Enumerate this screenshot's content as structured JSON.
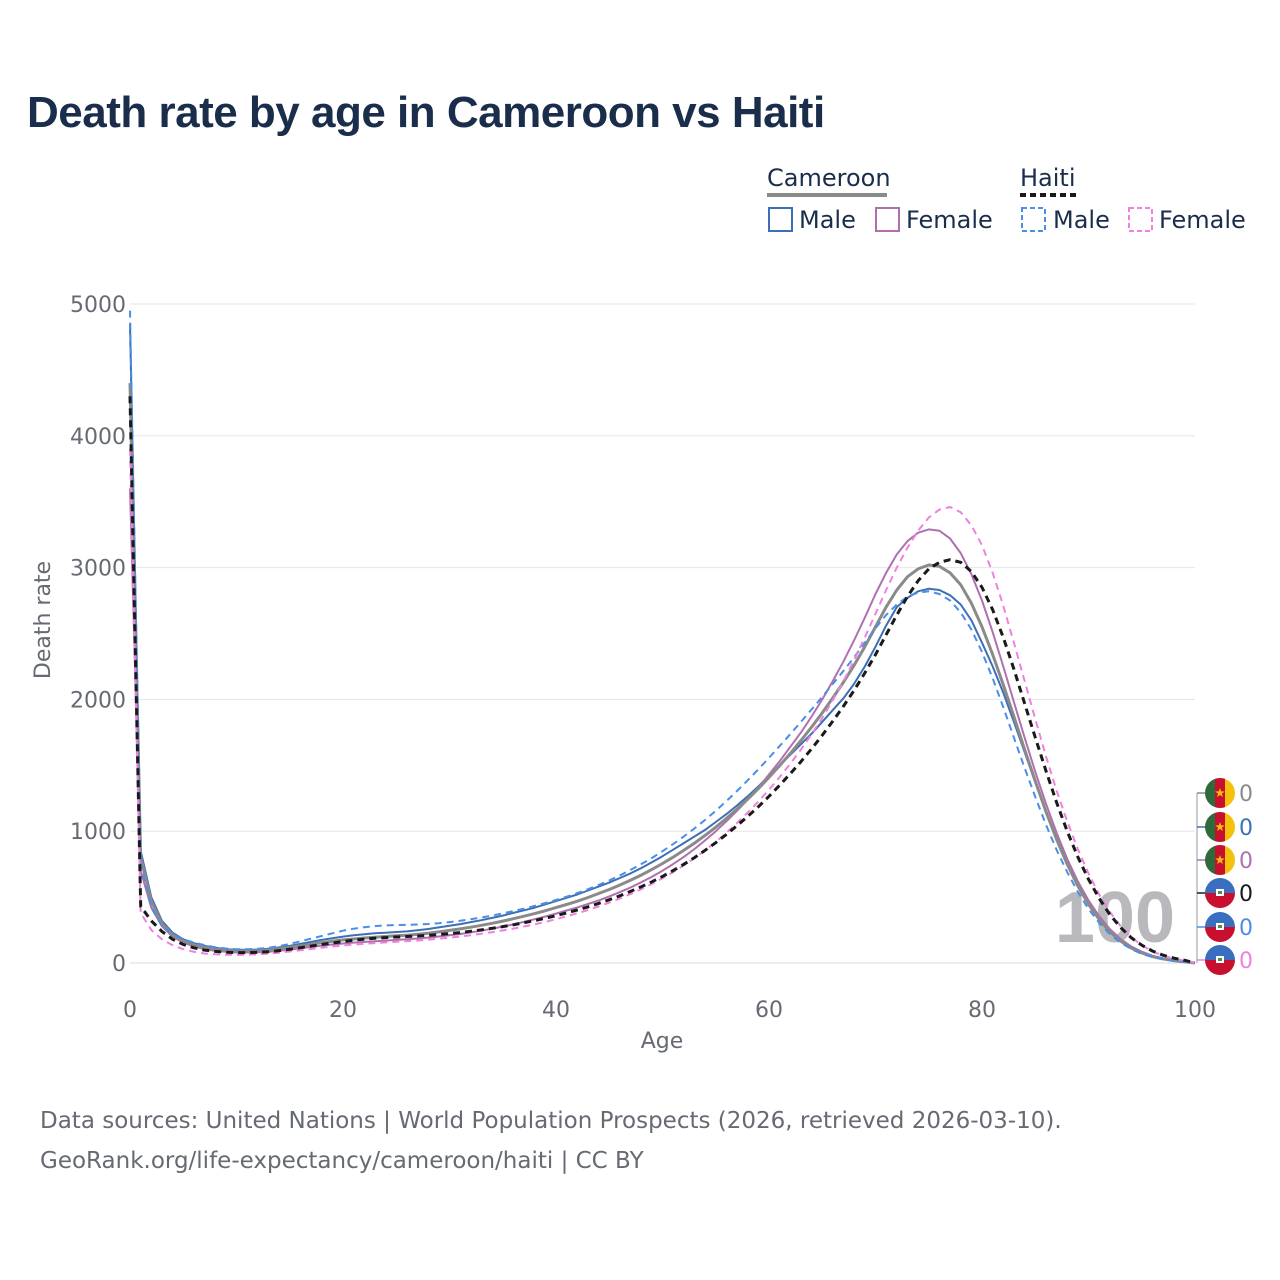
{
  "title": "Death rate by age in Cameroon vs Haiti",
  "legend": {
    "group_a": "Cameroon",
    "group_b": "Haiti",
    "male": "Male",
    "female": "Female"
  },
  "source_line1": "Data sources: United Nations | World Population Prospects (2026, retrieved 2026-03-10).",
  "source_line2": "GeoRank.org/life-expectancy/cameroon/haiti | CC BY",
  "chart_data": {
    "type": "line",
    "title": "Death rate by age in Cameroon vs Haiti",
    "xlabel": "Age",
    "ylabel": "Death rate",
    "xlim": [
      0,
      100
    ],
    "ylim": [
      0,
      5000
    ],
    "xticks": [
      0,
      20,
      40,
      60,
      80,
      100
    ],
    "yticks": [
      0,
      1000,
      2000,
      3000,
      4000,
      5000
    ],
    "animation_age_label": "100",
    "x": [
      0,
      1,
      2,
      3,
      4,
      5,
      6,
      7,
      8,
      9,
      10,
      11,
      12,
      13,
      14,
      15,
      16,
      17,
      18,
      19,
      20,
      21,
      22,
      23,
      24,
      25,
      26,
      27,
      28,
      29,
      30,
      31,
      32,
      33,
      34,
      35,
      36,
      37,
      38,
      39,
      40,
      41,
      42,
      43,
      44,
      45,
      46,
      47,
      48,
      49,
      50,
      51,
      52,
      53,
      54,
      55,
      56,
      57,
      58,
      59,
      60,
      61,
      62,
      63,
      64,
      65,
      66,
      67,
      68,
      69,
      70,
      71,
      72,
      73,
      74,
      75,
      76,
      77,
      78,
      79,
      80,
      81,
      82,
      83,
      84,
      85,
      86,
      87,
      88,
      89,
      90,
      91,
      92,
      93,
      94,
      95,
      96,
      97,
      98,
      99,
      100
    ],
    "series": [
      {
        "name": "Cameroon Male",
        "color": "#3d6fb6",
        "dash": "solid",
        "values": [
          4850,
          850,
          500,
          320,
          230,
          180,
          150,
          130,
          115,
          105,
          100,
          100,
          102,
          108,
          118,
          130,
          145,
          160,
          175,
          188,
          200,
          210,
          218,
          225,
          230,
          235,
          240,
          248,
          258,
          270,
          282,
          295,
          310,
          325,
          342,
          360,
          380,
          400,
          420,
          445,
          470,
          495,
          520,
          550,
          580,
          610,
          645,
          680,
          720,
          765,
          810,
          860,
          910,
          960,
          1010,
          1070,
          1130,
          1195,
          1265,
          1340,
          1420,
          1500,
          1580,
          1660,
          1740,
          1830,
          1920,
          2010,
          2120,
          2250,
          2400,
          2560,
          2700,
          2770,
          2820,
          2840,
          2830,
          2790,
          2720,
          2600,
          2430,
          2250,
          2050,
          1830,
          1600,
          1370,
          1150,
          950,
          770,
          610,
          470,
          350,
          255,
          180,
          125,
          85,
          55,
          35,
          20,
          10,
          0
        ]
      },
      {
        "name": "Cameroon Female",
        "color": "#b070b0",
        "dash": "solid",
        "values": [
          3600,
          700,
          420,
          280,
          200,
          155,
          125,
          105,
          92,
          85,
          80,
          80,
          82,
          86,
          93,
          102,
          112,
          122,
          132,
          140,
          148,
          155,
          160,
          165,
          170,
          175,
          180,
          186,
          193,
          201,
          210,
          220,
          232,
          245,
          260,
          276,
          293,
          312,
          332,
          353,
          375,
          398,
          422,
          448,
          475,
          505,
          538,
          573,
          612,
          655,
          700,
          750,
          805,
          865,
          930,
          1000,
          1075,
          1155,
          1240,
          1330,
          1430,
          1530,
          1640,
          1750,
          1870,
          2000,
          2140,
          2290,
          2450,
          2620,
          2800,
          2960,
          3100,
          3200,
          3265,
          3290,
          3280,
          3220,
          3110,
          2950,
          2750,
          2510,
          2250,
          1980,
          1710,
          1450,
          1210,
          990,
          790,
          620,
          475,
          355,
          258,
          182,
          125,
          84,
          55,
          35,
          21,
          11,
          0
        ]
      },
      {
        "name": "Cameroon Total",
        "color": "#8a8a8a",
        "dash": "solid",
        "width": 3,
        "values": [
          4400,
          800,
          470,
          300,
          215,
          168,
          138,
          118,
          105,
          97,
          92,
          92,
          94,
          99,
          108,
          118,
          130,
          143,
          155,
          165,
          175,
          182,
          190,
          196,
          201,
          206,
          211,
          218,
          226,
          236,
          247,
          259,
          272,
          286,
          301,
          318,
          336,
          355,
          375,
          397,
          420,
          444,
          469,
          497,
          527,
          558,
          592,
          628,
          667,
          710,
          755,
          803,
          855,
          910,
          968,
          1030,
          1097,
          1168,
          1243,
          1323,
          1408,
          1497,
          1590,
          1688,
          1790,
          1898,
          2012,
          2132,
          2260,
          2400,
          2550,
          2700,
          2830,
          2930,
          2990,
          3020,
          3010,
          2960,
          2870,
          2730,
          2550,
          2340,
          2110,
          1870,
          1620,
          1380,
          1150,
          940,
          750,
          585,
          445,
          330,
          238,
          167,
          114,
          76,
          49,
          31,
          18,
          9,
          0
        ]
      },
      {
        "name": "Haiti Male",
        "color": "#4a8ee6",
        "dash": "dashed",
        "values": [
          4950,
          750,
          420,
          280,
          215,
          180,
          155,
          135,
          120,
          110,
          105,
          105,
          108,
          115,
          128,
          145,
          165,
          185,
          205,
          225,
          245,
          260,
          272,
          280,
          285,
          288,
          290,
          292,
          296,
          302,
          310,
          320,
          332,
          345,
          360,
          376,
          394,
          413,
          433,
          455,
          478,
          503,
          530,
          560,
          592,
          627,
          665,
          706,
          750,
          797,
          848,
          902,
          960,
          1021,
          1086,
          1155,
          1228,
          1305,
          1386,
          1470,
          1557,
          1646,
          1737,
          1830,
          1924,
          2020,
          2118,
          2218,
          2320,
          2430,
          2540,
          2640,
          2720,
          2780,
          2810,
          2820,
          2800,
          2750,
          2660,
          2530,
          2360,
          2160,
          1940,
          1710,
          1480,
          1260,
          1050,
          860,
          690,
          540,
          410,
          305,
          220,
          155,
          106,
          70,
          45,
          28,
          16,
          8,
          0
        ]
      },
      {
        "name": "Haiti Female",
        "color": "#f080e0",
        "dash": "dashed",
        "values": [
          3900,
          380,
          250,
          180,
          135,
          105,
          85,
          72,
          66,
          63,
          62,
          63,
          66,
          71,
          78,
          87,
          96,
          106,
          116,
          125,
          133,
          140,
          146,
          151,
          156,
          161,
          166,
          171,
          177,
          184,
          192,
          201,
          211,
          222,
          234,
          247,
          261,
          277,
          294,
          312,
          332,
          354,
          377,
          402,
          429,
          458,
          489,
          523,
          560,
          600,
          643,
          690,
          741,
          796,
          855,
          919,
          988,
          1062,
          1141,
          1225,
          1315,
          1410,
          1512,
          1620,
          1735,
          1860,
          1995,
          2140,
          2300,
          2470,
          2650,
          2830,
          3000,
          3150,
          3280,
          3380,
          3440,
          3460,
          3420,
          3320,
          3170,
          2960,
          2710,
          2430,
          2140,
          1850,
          1570,
          1310,
          1075,
          865,
          680,
          520,
          388,
          281,
          197,
          134,
          88,
          56,
          34,
          19,
          0
        ]
      },
      {
        "name": "Haiti Total",
        "color": "#1a1a1a",
        "dash": "dashed",
        "width": 3,
        "values": [
          4300,
          430,
          320,
          240,
          180,
          140,
          115,
          98,
          88,
          82,
          79,
          79,
          81,
          86,
          94,
          104,
          116,
          128,
          140,
          152,
          163,
          173,
          181,
          188,
          193,
          197,
          201,
          205,
          210,
          216,
          223,
          231,
          241,
          251,
          263,
          276,
          290,
          306,
          322,
          340,
          359,
          380,
          402,
          426,
          452,
          480,
          510,
          543,
          578,
          616,
          657,
          701,
          749,
          800,
          855,
          913,
          976,
          1042,
          1112,
          1186,
          1265,
          1348,
          1436,
          1528,
          1625,
          1728,
          1836,
          1950,
          2070,
          2200,
          2340,
          2490,
          2640,
          2780,
          2900,
          2990,
          3040,
          3060,
          3040,
          2970,
          2850,
          2680,
          2470,
          2230,
          1970,
          1710,
          1460,
          1220,
          1000,
          805,
          635,
          490,
          368,
          270,
          193,
          135,
          91,
          59,
          37,
          21,
          0
        ]
      }
    ],
    "animation_markers": [
      {
        "country": "Cameroon",
        "series": "Male",
        "value": "0",
        "color": "#8a8a8a"
      },
      {
        "country": "Cameroon",
        "series": "Female",
        "value": "0",
        "color": "#3d6fb6"
      },
      {
        "country": "Cameroon",
        "series": "Total",
        "value": "0",
        "color": "#b070b0"
      },
      {
        "country": "Haiti",
        "series": "Total",
        "value": "0",
        "color": "#1a1a1a"
      },
      {
        "country": "Haiti",
        "series": "Male",
        "value": "0",
        "color": "#4a8ee6"
      },
      {
        "country": "Haiti",
        "series": "Female",
        "value": "0",
        "color": "#f080e0"
      }
    ]
  }
}
